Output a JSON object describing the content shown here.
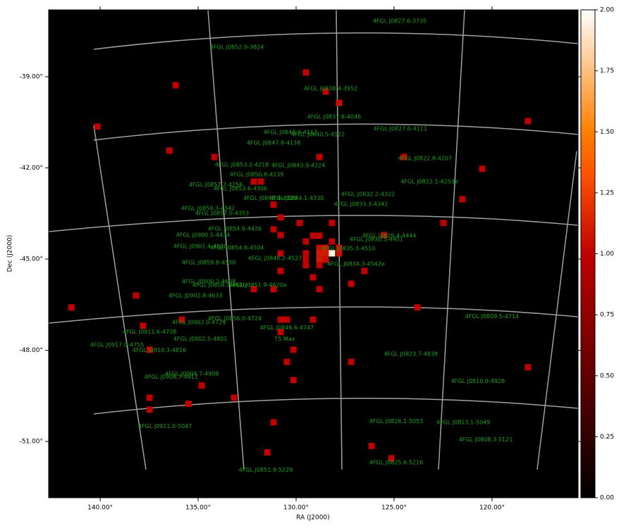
{
  "chart_data": {
    "type": "skymap",
    "xlabel": "RA (J2000)",
    "ylabel": "Dec (J2000)",
    "xlim": [
      142.63,
      115.61
    ],
    "ylim": [
      -52.85,
      -36.8
    ],
    "xticks": [
      {
        "value": 140,
        "label": "140.00°"
      },
      {
        "value": 135,
        "label": "135.00°"
      },
      {
        "value": 130,
        "label": "130.00°"
      },
      {
        "value": 125,
        "label": "125.00°"
      },
      {
        "value": 120,
        "label": "120.00°"
      }
    ],
    "yticks": [
      {
        "value": -39,
        "label": "-39.00°"
      },
      {
        "value": -42,
        "label": "-42.00°"
      },
      {
        "value": -45,
        "label": "-45.00°"
      },
      {
        "value": -48,
        "label": "-48.00°"
      },
      {
        "value": -51,
        "label": "-51.00°"
      }
    ],
    "colormap": "gist_heat",
    "colorbar": {
      "lim": [
        0,
        2
      ],
      "ticks": [
        {
          "value": 0,
          "label": "0.00"
        },
        {
          "value": 0.25,
          "label": "0.25"
        },
        {
          "value": 0.5,
          "label": "0.50"
        },
        {
          "value": 0.75,
          "label": "0.75"
        },
        {
          "value": 1,
          "label": "1.00"
        },
        {
          "value": 1.25,
          "label": "1.25"
        },
        {
          "value": 1.5,
          "label": "1.50"
        },
        {
          "value": 1.75,
          "label": "1.75"
        },
        {
          "value": 2,
          "label": "2.00"
        }
      ]
    },
    "label_color": "#1ca01c",
    "pixels": {
      "ra": [
        140.14,
        136.15,
        129.5,
        128.49,
        127.81,
        118.17,
        136.47,
        134.17,
        128.81,
        124.5,
        120.5,
        121.51,
        132.16,
        131.8,
        131.15,
        129.82,
        130.79,
        128.17,
        122.48,
        125.5,
        131.15,
        130.79,
        129.14,
        128.81,
        129.5,
        128.17,
        127.81,
        128.81,
        128.49,
        130.79,
        129.5,
        128.81,
        128.49,
        128.17,
        127.81,
        129.5,
        128.81,
        128.49,
        129.5,
        128.81,
        126.51,
        130.79,
        129.14,
        127.19,
        138.17,
        132.16,
        131.15,
        128.81,
        141.47,
        123.81,
        135.83,
        130.79,
        130.47,
        129.14,
        137.81,
        130.79,
        137.48,
        130.14,
        130.47,
        127.19,
        118.17,
        134.82,
        130.14,
        137.48,
        133.17,
        135.5,
        137.48,
        131.15,
        131.47,
        126.15,
        125.14
      ],
      "dec": [
        -40.64,
        -39.28,
        -38.86,
        -39.49,
        -39.86,
        -40.46,
        -41.43,
        -41.64,
        -41.64,
        -41.64,
        -42.03,
        -43.03,
        -42.45,
        -42.45,
        -43.21,
        -43.81,
        -43.63,
        -43.81,
        -43.81,
        -44.21,
        -44.02,
        -44.21,
        -44.23,
        -44.23,
        -44.42,
        -44.42,
        -44.63,
        -44.63,
        -44.63,
        -44.81,
        -44.81,
        -44.81,
        -44.81,
        -44.81,
        -44.81,
        -45.02,
        -45.02,
        -45.02,
        -45.2,
        -45.2,
        -45.39,
        -45.39,
        -45.6,
        -45.81,
        -46.2,
        -45.99,
        -45.99,
        -45.99,
        -46.59,
        -46.59,
        -46.99,
        -46.99,
        -46.99,
        -46.99,
        -47.19,
        -47.4,
        -47.98,
        -47.98,
        -48.38,
        -48.38,
        -48.56,
        -49.16,
        -48.98,
        -49.56,
        -49.56,
        -49.76,
        -49.95,
        -50.37,
        -51.36,
        -51.15,
        -51.55
      ],
      "ts": [
        1,
        1,
        1,
        1,
        1.05,
        1,
        1,
        1,
        1,
        1,
        1,
        1,
        1,
        1,
        1,
        1,
        1,
        1,
        1,
        1,
        1,
        1,
        1,
        1,
        1,
        1,
        1.05,
        1.05,
        1.05,
        1,
        1,
        1.1,
        1.1,
        1.95,
        1.05,
        1,
        1.1,
        1.05,
        1,
        1,
        1,
        1,
        1,
        1,
        1,
        1,
        1,
        1,
        1,
        1,
        1,
        1,
        1,
        1,
        1,
        1,
        1,
        1,
        1,
        1,
        1,
        1,
        1,
        1,
        1,
        1,
        1,
        1,
        1,
        1,
        1
      ]
    },
    "sources": [
      {
        "name": "4FGL J0827.6-3735",
        "ra": 124.71,
        "dec": -37.17
      },
      {
        "name": "4FGL J0852.9-3824",
        "ra": 133.02,
        "dec": -38.03
      },
      {
        "name": "4FGL J0838.4-3952",
        "ra": 128.24,
        "dec": -39.39
      },
      {
        "name": "4FGL J0837.8-4046",
        "ra": 128.06,
        "dec": -40.32
      },
      {
        "name": "4FGL J0827.0-4111",
        "ra": 124.68,
        "dec": -40.71
      },
      {
        "name": "4FGL J0848.9-4117",
        "ra": 130.29,
        "dec": -40.83
      },
      {
        "name": "4FGL J0840.5-4122",
        "ra": 128.88,
        "dec": -40.9
      },
      {
        "name": "4FGL J0847.8-4138",
        "ra": 131.15,
        "dec": -41.18
      },
      {
        "name": "4FGL J0822.8-4207",
        "ra": 123.42,
        "dec": -41.69
      },
      {
        "name": "4FGL J0853.2-4218",
        "ra": 132.77,
        "dec": -41.89
      },
      {
        "name": "4FGL J0843.9-4224",
        "ra": 129.89,
        "dec": -41.92
      },
      {
        "name": "4FGL J0850.8-4239",
        "ra": 132.01,
        "dec": -42.22
      },
      {
        "name": "4FGL J0822.1-4253e",
        "ra": 123.2,
        "dec": -42.45
      },
      {
        "name": "4FGL J0857.7-4256",
        "ra": 134.1,
        "dec": -42.56
      },
      {
        "name": "4FGL J0853.6-4306",
        "ra": 132.84,
        "dec": -42.68
      },
      {
        "name": "4FGL J0832.2-4322",
        "ra": 126.33,
        "dec": -42.87
      },
      {
        "name": "4FGL J0844.1-4330",
        "ra": 129.96,
        "dec": -43.0
      },
      {
        "name": "4FGL J0848.4-4328",
        "ra": 131.33,
        "dec": -43.0
      },
      {
        "name": "4FGL J0833.3-4342",
        "ra": 126.69,
        "dec": -43.19
      },
      {
        "name": "4FGL J0859.3-4342",
        "ra": 134.5,
        "dec": -43.33
      },
      {
        "name": "4FGL J0857.0-4353",
        "ra": 133.78,
        "dec": -43.49
      },
      {
        "name": "4FGL J0854.9-4426",
        "ra": 133.13,
        "dec": -44.0
      },
      {
        "name": "4FGL J0900.5-4434",
        "ra": 134.75,
        "dec": -44.21
      },
      {
        "name": "4FGL J0829.4-4444",
        "ra": 125.25,
        "dec": -44.23
      },
      {
        "name": "4FGL J0830.5-4451",
        "ra": 125.9,
        "dec": -44.35
      },
      {
        "name": "4FGL J0901.4-4500",
        "ra": 134.89,
        "dec": -44.58
      },
      {
        "name": "4FGL J0854.8-4504",
        "ra": 133.02,
        "dec": -44.63
      },
      {
        "name": "4FGL J0835.3-4510",
        "ra": 127.34,
        "dec": -44.65
      },
      {
        "name": "4FGL J0848.2-4527",
        "ra": 131.08,
        "dec": -44.97
      },
      {
        "name": "4FGL J0859.8-4530",
        "ra": 134.46,
        "dec": -45.11
      },
      {
        "name": "4FGL J0834.3-4542e",
        "ra": 126.94,
        "dec": -45.16
      },
      {
        "name": "4FGL J0900.2-4608",
        "ra": 134.46,
        "dec": -45.74
      },
      {
        "name": "4FGL J0858.3-4616",
        "ra": 133.92,
        "dec": -45.85
      },
      {
        "name": "4FGL J0851.9-4620e",
        "ra": 131.94,
        "dec": -45.85
      },
      {
        "name": "4FGL J0902.8-4633",
        "ra": 135.14,
        "dec": -46.2
      },
      {
        "name": "4FGL J0809.5-4714",
        "ra": 120.0,
        "dec": -46.89
      },
      {
        "name": "4FGL J0856.0-4724",
        "ra": 133.13,
        "dec": -46.96
      },
      {
        "name": "4FGL J0902.0-4729",
        "ra": 134.96,
        "dec": -47.08
      },
      {
        "name": "4FGL J0846.6-4747",
        "ra": 130.47,
        "dec": -47.26
      },
      {
        "name": "4FGL J0911.6-4738",
        "ra": 137.48,
        "dec": -47.4
      },
      {
        "name": "TS Max",
        "ra": 130.58,
        "dec": -47.63
      },
      {
        "name": "4FGL J0902.5-4801",
        "ra": 134.89,
        "dec": -47.63
      },
      {
        "name": "4FGL J0917.0-4755",
        "ra": 139.14,
        "dec": -47.82
      },
      {
        "name": "4FGL J0910.3-4816",
        "ra": 136.98,
        "dec": -48.0
      },
      {
        "name": "4FGL J0823.7-4838",
        "ra": 124.14,
        "dec": -48.12
      },
      {
        "name": "4FGL J0904.7-4908",
        "ra": 135.32,
        "dec": -48.77
      },
      {
        "name": "4FGL J0908.7-4911",
        "ra": 136.37,
        "dec": -48.88
      },
      {
        "name": "4FGL J0810.9-4926",
        "ra": 120.72,
        "dec": -49.02
      },
      {
        "name": "4FGL J0826.1-5053",
        "ra": 124.89,
        "dec": -50.34
      },
      {
        "name": "4FGL J0813.1-5049",
        "ra": 121.47,
        "dec": -50.37
      },
      {
        "name": "4FGL J0911.0-5047",
        "ra": 136.69,
        "dec": -50.5
      },
      {
        "name": "4FGL J0808.3-5121",
        "ra": 120.32,
        "dec": -50.94
      },
      {
        "name": "4FGL J0825.6-5216",
        "ra": 124.89,
        "dec": -51.69
      },
      {
        "name": "4FGL J0851.9-5229",
        "ra": 131.55,
        "dec": -51.94
      }
    ]
  }
}
